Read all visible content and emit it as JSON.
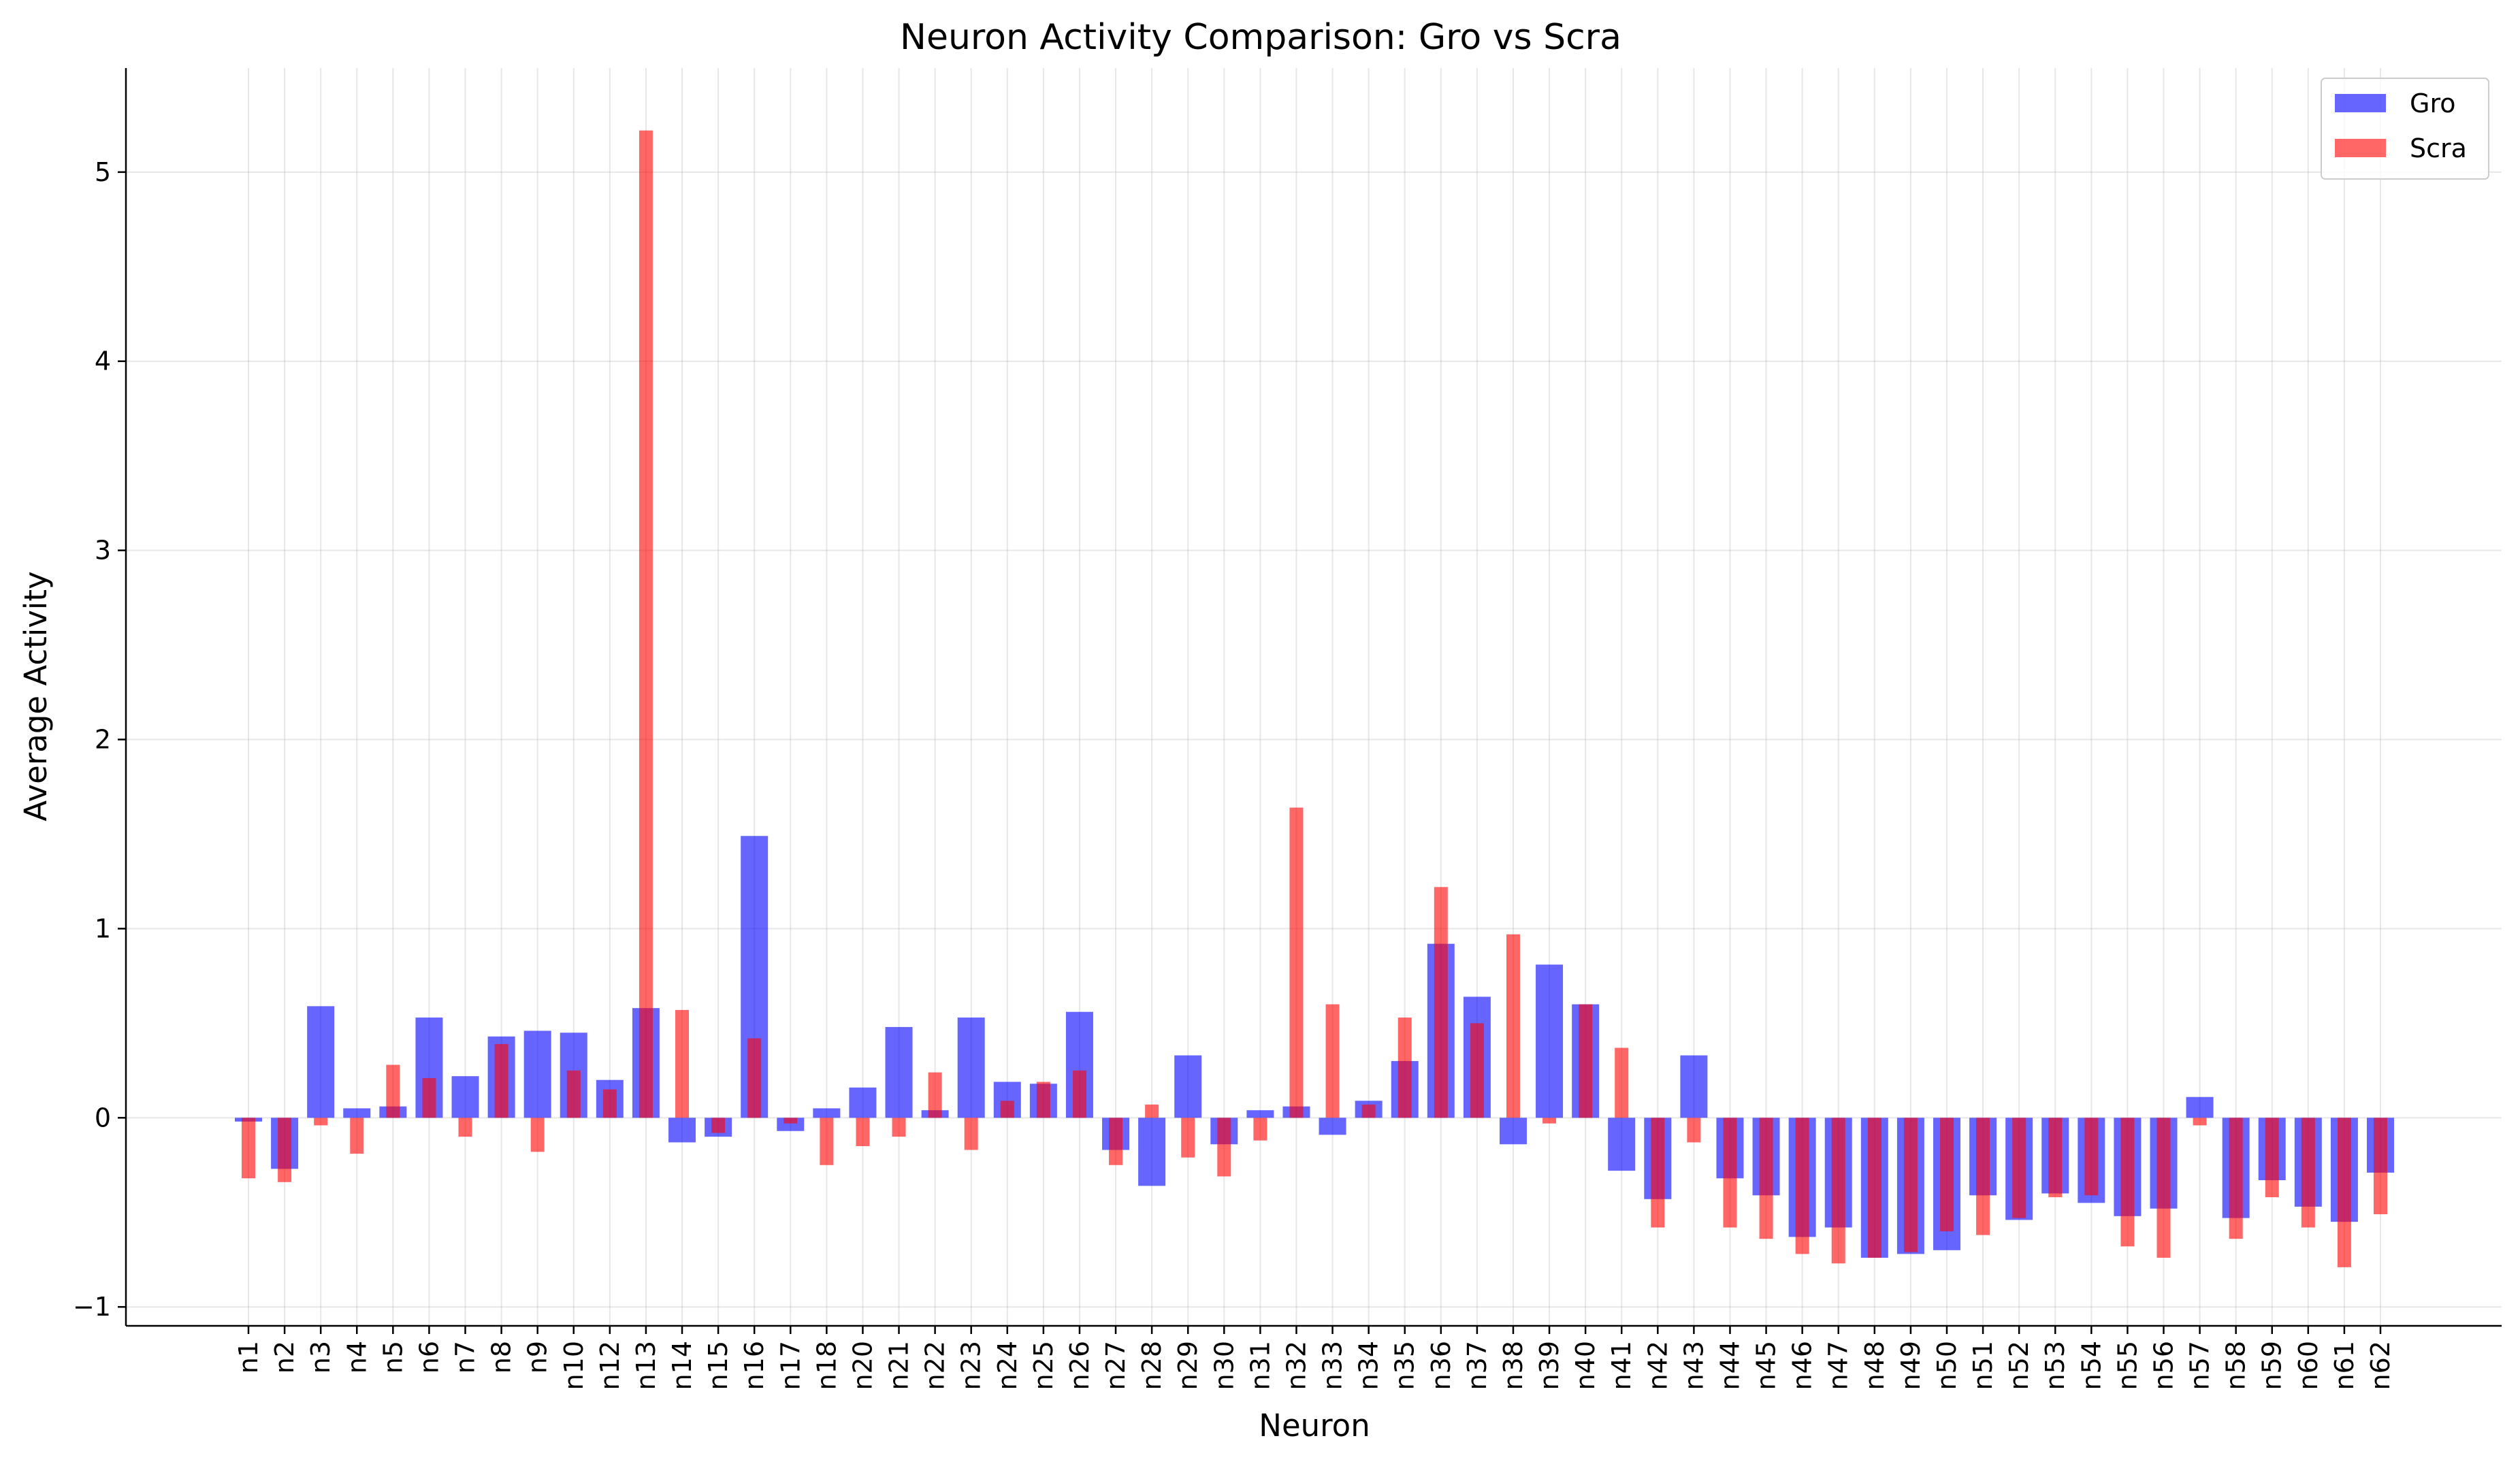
{
  "chart_data": {
    "type": "bar",
    "title": "Neuron Activity Comparison: Gro vs Scra",
    "xlabel": "Neuron",
    "ylabel": "Average Activity",
    "ylim": [
      -1.1,
      5.55
    ],
    "yticks": [
      -1,
      0,
      1,
      2,
      3,
      4,
      5
    ],
    "ytick_labels": [
      "−1",
      "0",
      "1",
      "2",
      "3",
      "4",
      "5"
    ],
    "grid": true,
    "legend_position": "top-right",
    "categories": [
      "n1",
      "n2",
      "n3",
      "n4",
      "n5",
      "n6",
      "n7",
      "n8",
      "n9",
      "n10",
      "n12",
      "n13",
      "n14",
      "n15",
      "n16",
      "n17",
      "n18",
      "n20",
      "n21",
      "n22",
      "n23",
      "n24",
      "n25",
      "n26",
      "n27",
      "n28",
      "n29",
      "n30",
      "n31",
      "n32",
      "n33",
      "n34",
      "n35",
      "n36",
      "n37",
      "n38",
      "n39",
      "n40",
      "n41",
      "n42",
      "n43",
      "n44",
      "n45",
      "n46",
      "n47",
      "n48",
      "n49",
      "n50",
      "n51",
      "n52",
      "n53",
      "n54",
      "n55",
      "n56",
      "n57",
      "n58",
      "n59",
      "n60",
      "n61",
      "n62"
    ],
    "series": [
      {
        "name": "Gro",
        "color": "#0000ff",
        "values": [
          -0.02,
          -0.27,
          0.59,
          0.05,
          0.06,
          0.53,
          0.22,
          0.43,
          0.46,
          0.45,
          0.2,
          0.58,
          -0.13,
          -0.1,
          1.49,
          -0.07,
          0.05,
          0.16,
          0.48,
          0.04,
          0.53,
          0.19,
          0.18,
          0.56,
          -0.17,
          -0.36,
          0.33,
          -0.14,
          0.04,
          0.06,
          -0.09,
          0.09,
          0.3,
          0.92,
          0.64,
          -0.14,
          0.81,
          0.6,
          -0.28,
          -0.43,
          0.33,
          -0.32,
          -0.41,
          -0.63,
          -0.58,
          -0.74,
          -0.72,
          -0.7,
          -0.41,
          -0.54,
          -0.4,
          -0.45,
          -0.52,
          -0.48,
          0.11,
          -0.53,
          -0.33,
          -0.47,
          -0.55,
          -0.29
        ]
      },
      {
        "name": "Scra",
        "color": "#ff0000",
        "values": [
          -0.32,
          -0.34,
          -0.04,
          -0.19,
          0.28,
          0.21,
          -0.1,
          0.39,
          -0.18,
          0.25,
          0.15,
          5.22,
          0.57,
          -0.08,
          0.42,
          -0.03,
          -0.25,
          -0.15,
          -0.1,
          0.24,
          -0.17,
          0.09,
          0.19,
          0.25,
          -0.25,
          0.07,
          -0.21,
          -0.31,
          -0.12,
          1.64,
          0.6,
          0.07,
          0.53,
          1.22,
          0.5,
          0.97,
          -0.03,
          0.6,
          0.37,
          -0.58,
          -0.13,
          -0.58,
          -0.64,
          -0.72,
          -0.77,
          -0.74,
          -0.71,
          -0.6,
          -0.62,
          -0.53,
          -0.42,
          -0.41,
          -0.68,
          -0.74,
          -0.04,
          -0.64,
          -0.42,
          -0.58,
          -0.79,
          -0.51
        ]
      }
    ]
  }
}
